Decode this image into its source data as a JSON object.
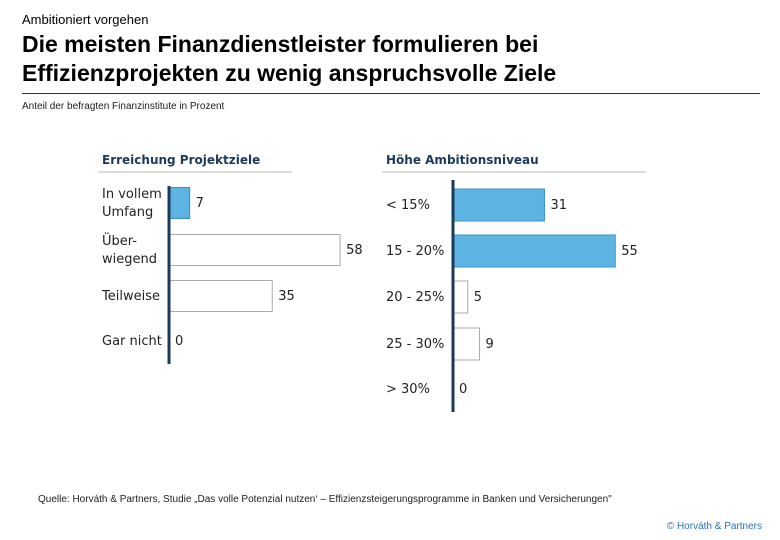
{
  "header": {
    "kicker": "Ambitioniert vorgehen",
    "title_line1": "Die meisten Finanzdienstleister formulieren bei",
    "title_line2": "Effizienzprojekten zu wenig anspruchsvolle Ziele",
    "subtitle": "Anteil der befragten Finanzinstitute in Prozent"
  },
  "footer": {
    "source": "Quelle: Horváth & Partners, Studie „Das volle Potenzial nutzen‘ – Effizienzsteigerungsprogramme in Banken und Versicherungen\"",
    "copyright": "© Horváth & Partners"
  },
  "colors": {
    "filled": "#5db4e3",
    "filled_stroke": "#3b8fc4",
    "empty_stroke": "#aaaaaa",
    "axis": "#1b3a5c",
    "heading": "#1b3a5c"
  },
  "chart_data": [
    {
      "type": "bar",
      "orientation": "horizontal",
      "title": "Erreichung Projektziele",
      "categories": [
        "In vollem Umfang",
        "Über-wiegend",
        "Teilweise",
        "Gar nicht"
      ],
      "category_lines": [
        [
          "In vollem",
          "Umfang"
        ],
        [
          "Über-",
          "wiegend"
        ],
        [
          "Teilweise"
        ],
        [
          "Gar nicht"
        ]
      ],
      "values": [
        7,
        58,
        35,
        0
      ],
      "value_labels": [
        "7",
        "58",
        "35",
        "0"
      ],
      "highlight": [
        true,
        false,
        false,
        false
      ]
    },
    {
      "type": "bar",
      "orientation": "horizontal",
      "title": "Höhe Ambitionsniveau",
      "categories": [
        "< 15%",
        "15 - 20%",
        "20 - 25%",
        "25 - 30%",
        "> 30%"
      ],
      "category_lines": [
        [
          "< 15%"
        ],
        [
          "15 - 20%"
        ],
        [
          "20 - 25%"
        ],
        [
          "25 - 30%"
        ],
        [
          "> 30%"
        ]
      ],
      "values": [
        31,
        55,
        5,
        9,
        0
      ],
      "value_labels": [
        "31",
        "55",
        "5",
        "9",
        "0"
      ],
      "highlight": [
        true,
        true,
        false,
        false,
        false
      ]
    }
  ]
}
